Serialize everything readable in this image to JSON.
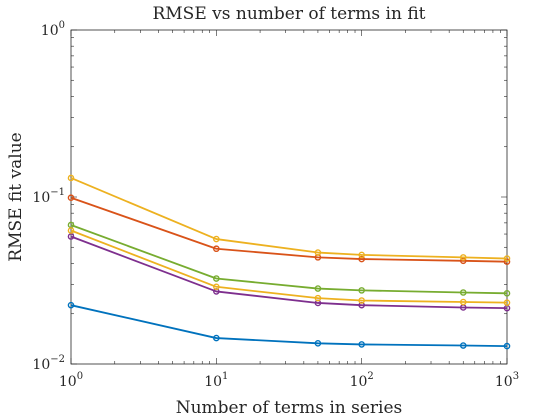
{
  "chart_data": {
    "type": "line",
    "title": "RMSE vs number of terms in fit",
    "xlabel": "Number of terms in series",
    "ylabel": "RMSE fit value",
    "xscale": "log",
    "yscale": "log",
    "xlim": [
      1,
      1000
    ],
    "ylim": [
      0.01,
      1
    ],
    "grid": false,
    "legend": "none",
    "x_ticks": [
      {
        "value": 1,
        "base": "10",
        "exp": "0"
      },
      {
        "value": 10,
        "base": "10",
        "exp": "1"
      },
      {
        "value": 100,
        "base": "10",
        "exp": "2"
      },
      {
        "value": 1000,
        "base": "10",
        "exp": "3"
      }
    ],
    "y_ticks": [
      {
        "value": 0.01,
        "base": "10",
        "exp": "−2"
      },
      {
        "value": 0.1,
        "base": "10",
        "exp": "−1"
      },
      {
        "value": 1,
        "base": "10",
        "exp": "0"
      }
    ],
    "x": [
      1,
      10,
      50,
      100,
      500,
      1000
    ],
    "series": [
      {
        "color": "#0072BD",
        "values": [
          0.0225,
          0.0143,
          0.0133,
          0.0131,
          0.0129,
          0.0128
        ]
      },
      {
        "color": "#D95319",
        "values": [
          0.099,
          0.049,
          0.0435,
          0.0425,
          0.0415,
          0.041
        ]
      },
      {
        "color": "#EDB120",
        "values": [
          0.13,
          0.056,
          0.0465,
          0.045,
          0.0435,
          0.0428
        ]
      },
      {
        "color": "#7E2F8E",
        "values": [
          0.058,
          0.0272,
          0.0232,
          0.0225,
          0.0218,
          0.0216
        ]
      },
      {
        "color": "#77AC30",
        "values": [
          0.068,
          0.0325,
          0.0283,
          0.0276,
          0.0268,
          0.0265
        ]
      },
      {
        "color": "#EDB120",
        "values": [
          0.063,
          0.029,
          0.0248,
          0.024,
          0.0235,
          0.0233
        ]
      }
    ]
  }
}
